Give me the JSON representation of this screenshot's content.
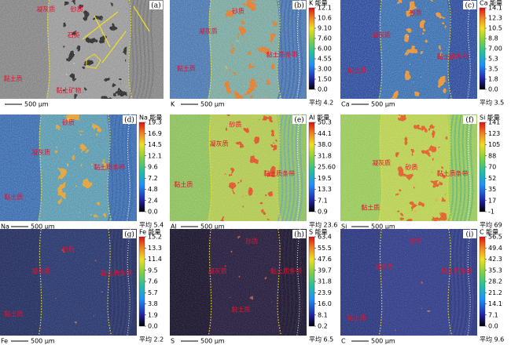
{
  "panels": [
    {
      "label": "(a)",
      "element": "",
      "scale": "500 μm",
      "regions": [
        "凝灰质",
        "砂质",
        "黏土质",
        "石英",
        "黏土矿物"
      ]
    },
    {
      "label": "(b)",
      "element": "K",
      "title": "K 能量",
      "ticks": [
        "12.1",
        "10.6",
        "9.10",
        "7.60",
        "6.00",
        "4.55",
        "3.00",
        "1.50",
        "0.0"
      ],
      "mean": "平均 4.2",
      "scale": "500 μm",
      "regions": [
        "砂质",
        "凝灰质",
        "黏土质",
        "黏土质条带"
      ]
    },
    {
      "label": "(c)",
      "element": "Ca",
      "title": "Ca 能量",
      "ticks": [
        "14.1",
        "12.3",
        "10.5",
        "8.8",
        "7.00",
        "5.3",
        "3.5",
        "1.8",
        "0.0"
      ],
      "mean": "平均 3.5",
      "scale": "500 μm",
      "regions": [
        "砂质",
        "凝灰质",
        "黏土质",
        "黏土质条带"
      ]
    },
    {
      "label": "(d)",
      "element": "Na",
      "title": "Na 能量",
      "ticks": [
        "19.3",
        "16.9",
        "14.5",
        "12.1",
        "9.6",
        "7.2",
        "4.8",
        "2.4",
        "0.0"
      ],
      "mean": "平均 5.4",
      "scale": "500 μm",
      "regions": [
        "砂质",
        "凝灰质",
        "黏土质",
        "黏土质条带"
      ]
    },
    {
      "label": "(e)",
      "element": "Al",
      "title": "Al 能量",
      "ticks": [
        "50.3",
        "44.1",
        "38.0",
        "31.8",
        "25.60",
        "19.5",
        "13.3",
        "7.1",
        "0.9"
      ],
      "mean": "平均 23.6",
      "scale": "500 μm",
      "regions": [
        "砂质",
        "凝灰质",
        "黏土质",
        "黏土质条带"
      ]
    },
    {
      "label": "(f)",
      "element": "Si",
      "title": "Si 能量",
      "ticks": [
        "141",
        "123",
        "105",
        "88",
        "70",
        "52",
        "35",
        "17",
        "-1"
      ],
      "mean": "平均 69",
      "scale": "500 μm",
      "regions": [
        "砂质",
        "凝灰质",
        "黏土质",
        "黏土质条带"
      ]
    },
    {
      "label": "(g)",
      "element": "Fe",
      "title": "Fe 能量",
      "ticks": [
        "15.2",
        "13.3",
        "11.4",
        "9.5",
        "7.6",
        "5.7",
        "3.8",
        "1.9",
        "0.0"
      ],
      "mean": "平均 2.2",
      "scale": "500 μm",
      "regions": [
        "砂质",
        "凝灰质",
        "黏土质",
        "黏土质条带"
      ]
    },
    {
      "label": "(h)",
      "element": "S",
      "title": "S 能量",
      "ticks": [
        "63.4",
        "55.5",
        "47.6",
        "39.7",
        "31.8",
        "23.9",
        "16.0",
        "8.1",
        "0.2"
      ],
      "mean": "平均 6.5",
      "scale": "500 μm",
      "regions": [
        "砂质",
        "凝灰质",
        "黏土质",
        "黏土质条带"
      ]
    },
    {
      "label": "(i)",
      "element": "C",
      "title": "C 能量",
      "ticks": [
        "56.5",
        "49.4",
        "42.3",
        "35.3",
        "28.2",
        "21.2",
        "14.1",
        "7.1",
        "0.0"
      ],
      "mean": "平均 9.6",
      "scale": "500 μm",
      "regions": [
        "砂质",
        "凝灰质",
        "黏土质",
        "黏土质条带"
      ]
    }
  ]
}
